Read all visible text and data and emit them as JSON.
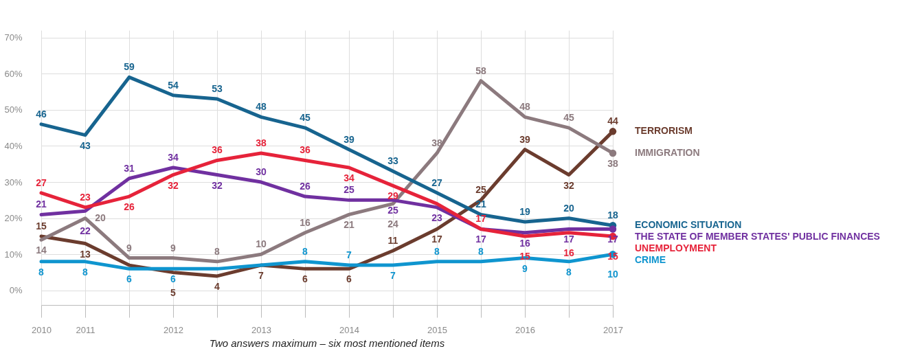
{
  "chart_data": {
    "type": "line",
    "categories": [
      "2010",
      "2011",
      null,
      "2012",
      null,
      "2013",
      null,
      "2014",
      null,
      "2015",
      null,
      "2016",
      null,
      "2017"
    ],
    "ylim": [
      -4,
      72
    ],
    "yticks": [
      {
        "value": 0,
        "label": "0%"
      },
      {
        "value": 10,
        "label": "10%"
      },
      {
        "value": 20,
        "label": "20%"
      },
      {
        "value": 30,
        "label": "30%"
      },
      {
        "value": 40,
        "label": "40%"
      },
      {
        "value": 50,
        "label": "50%"
      },
      {
        "value": 60,
        "label": "60%"
      },
      {
        "value": 70,
        "label": "70%"
      }
    ],
    "grid": true,
    "line_style": "solid",
    "annotations": [
      "Two answers maximum – six most mentioned items"
    ],
    "series": [
      {
        "name": "TERRORISM",
        "color": "#6b3c2e",
        "values": [
          15,
          13,
          7,
          5,
          4,
          7,
          6,
          6,
          11,
          17,
          25,
          39,
          32,
          44
        ],
        "value_labels": [
          "15",
          "13",
          null,
          "5",
          "4",
          "7",
          "6",
          "6",
          "11",
          "17",
          "25",
          "39",
          "32",
          "44"
        ]
      },
      {
        "name": "IMMIGRATION",
        "color": "#8c7a7e",
        "values": [
          14,
          20,
          9,
          9,
          8,
          10,
          16,
          21,
          24,
          38,
          58,
          48,
          45,
          38
        ],
        "value_labels": [
          "14",
          "20",
          "9",
          "9",
          "8",
          "10",
          "16",
          "21",
          "24",
          "38",
          "58",
          "48",
          "45",
          "38"
        ]
      },
      {
        "name": "ECONOMIC SITUATION",
        "color": "#17648f",
        "values": [
          46,
          43,
          59,
          54,
          53,
          48,
          45,
          39,
          33,
          27,
          21,
          19,
          20,
          18
        ],
        "value_labels": [
          "46",
          "43",
          "59",
          "54",
          "53",
          "48",
          "45",
          "39",
          "33",
          "27",
          "21",
          "19",
          "20",
          "18"
        ]
      },
      {
        "name": "THE STATE OF MEMBER STATES' PUBLIC FINANCES",
        "color": "#7030a0",
        "values": [
          21,
          22,
          31,
          34,
          32,
          30,
          26,
          25,
          25,
          23,
          17,
          16,
          17,
          17
        ],
        "value_labels": [
          "21",
          "22",
          "31",
          "34",
          "32",
          "30",
          "26",
          "25",
          "25",
          "23",
          "17",
          "16",
          "17",
          "17"
        ]
      },
      {
        "name": "UNEMPLOYMENT",
        "color": "#e6233a",
        "values": [
          27,
          23,
          26,
          32,
          36,
          38,
          36,
          34,
          29,
          24,
          17,
          15,
          16,
          15
        ],
        "value_labels": [
          "27",
          "23",
          "26",
          "32",
          "36",
          "38",
          "36",
          "34",
          "29",
          null,
          "17",
          "15",
          "16",
          "15"
        ]
      },
      {
        "name": "CRIME",
        "color": "#0f95cf",
        "values": [
          8,
          8,
          6,
          6,
          6,
          7,
          8,
          7,
          7,
          8,
          8,
          9,
          8,
          10
        ],
        "value_labels": [
          "8",
          "8",
          "6",
          "6",
          null,
          null,
          "8",
          "7",
          "7",
          "8",
          "8",
          "9",
          "8",
          "10"
        ]
      }
    ]
  }
}
